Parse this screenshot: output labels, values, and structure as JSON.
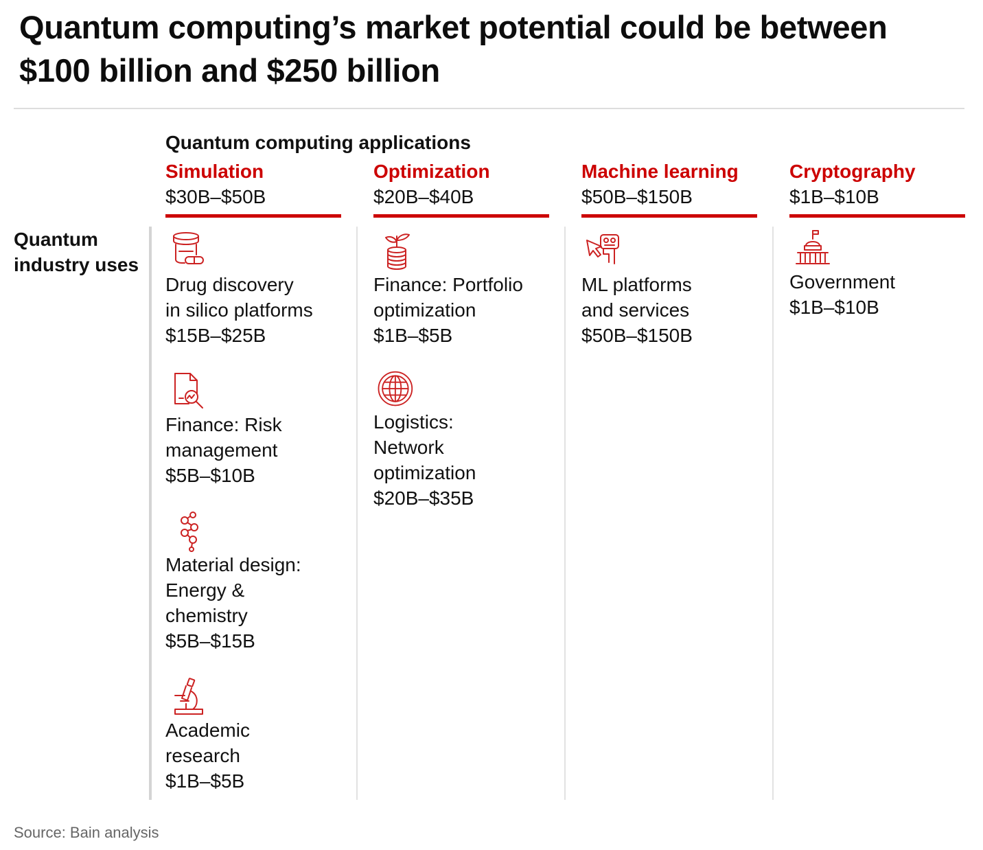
{
  "title": "Quantum computing’s market potential could be between $100 billion and $250 billion",
  "applications_heading": "Quantum computing applications",
  "row_label": "Quantum industry uses",
  "colors": {
    "accent": "#cc0000",
    "icon": "#cc2222",
    "text": "#111111",
    "muted": "#666666"
  },
  "columns": [
    {
      "name": "Simulation",
      "range": "$30B–$50B",
      "uses": [
        {
          "icon": "pill-bottle-icon",
          "label_lines": [
            "Drug discovery",
            "in silico platforms"
          ],
          "value": "$15B–$25B"
        },
        {
          "icon": "document-magnifier-icon",
          "label_lines": [
            "Finance: Risk",
            "management"
          ],
          "value": "$5B–$10B"
        },
        {
          "icon": "molecule-icon",
          "label_lines": [
            "Material design:",
            "Energy &",
            "chemistry"
          ],
          "value": "$5B–$15B"
        },
        {
          "icon": "microscope-icon",
          "label_lines": [
            "Academic",
            "research"
          ],
          "value": "$1B–$5B"
        }
      ]
    },
    {
      "name": "Optimization",
      "range": "$20B–$40B",
      "uses": [
        {
          "icon": "coin-stack-plant-icon",
          "label_lines": [
            "Finance: Portfolio",
            "optimization"
          ],
          "value": "$1B–$5B"
        },
        {
          "icon": "globe-icon",
          "label_lines": [
            "Logistics:",
            "Network",
            "optimization"
          ],
          "value": "$20B–$35B"
        }
      ]
    },
    {
      "name": "Machine learning",
      "range": "$50B–$150B",
      "uses": [
        {
          "icon": "robot-cursor-icon",
          "label_lines": [
            "ML platforms",
            "and services"
          ],
          "value": "$50B–$150B"
        }
      ]
    },
    {
      "name": "Cryptography",
      "range": "$1B–$10B",
      "uses": [
        {
          "icon": "government-building-icon",
          "label_lines": [
            "Government"
          ],
          "value": "$1B–$10B"
        }
      ]
    }
  ],
  "source": "Source: Bain analysis"
}
